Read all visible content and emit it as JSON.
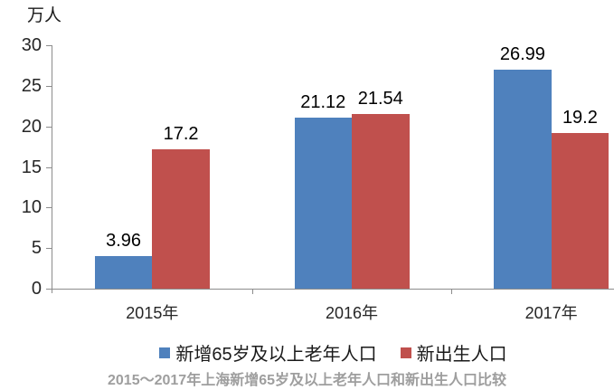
{
  "chart_data": {
    "type": "bar",
    "unit_label": "万人",
    "categories": [
      "2015年",
      "2016年",
      "2017年"
    ],
    "series": [
      {
        "name": "新增65岁及以上老年人口",
        "color": "#4F81BD",
        "values": [
          3.96,
          21.12,
          26.99
        ]
      },
      {
        "name": "新出生人口",
        "color": "#C0504D",
        "values": [
          17.2,
          21.54,
          19.2
        ]
      }
    ],
    "y_ticks": [
      0,
      5,
      10,
      15,
      20,
      25,
      30
    ],
    "ylim": [
      0,
      30
    ],
    "grid": false,
    "legend_position": "bottom",
    "title": "2015～2017年上海新增65岁及以上老年人口和新出生人口比较",
    "colors": {
      "axis": "#8c8c8c",
      "tick_text": "#262626",
      "value_label_text": "#000000",
      "title_text": "#9e9e9e"
    }
  }
}
